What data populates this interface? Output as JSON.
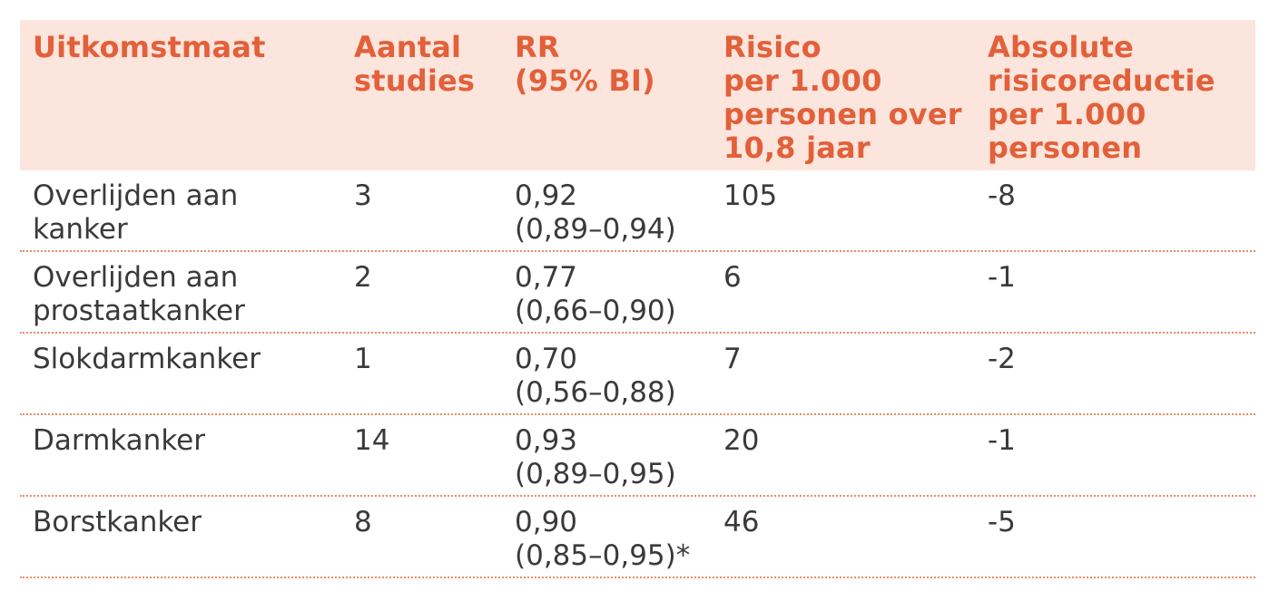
{
  "table": {
    "headers": [
      "Uitkomstmaat",
      "Aantal\nstudies",
      "RR\n(95% BI)",
      "Risico\nper 1.000\npersonen over\n10,8 jaar",
      "Absolute\nrisicoreductie\nper 1.000\npersonen"
    ],
    "rows": [
      [
        "Overlijden aan\nkanker",
        "3",
        "0,92\n(0,89–0,94)",
        "105",
        "-8"
      ],
      [
        "Overlijden aan\nprostaatkanker",
        "2",
        "0,77\n(0,66–0,90)",
        "6",
        "-1"
      ],
      [
        "Slokdarmkanker",
        "1",
        "0,70\n(0,56–0,88)",
        "7",
        "-2"
      ],
      [
        "Darmkanker",
        "14",
        "0,93\n(0,89–0,95)",
        "20",
        "-1"
      ],
      [
        "Borstkanker",
        "8",
        "0,90\n(0,85–0,95)*",
        "46",
        "-5"
      ]
    ]
  }
}
